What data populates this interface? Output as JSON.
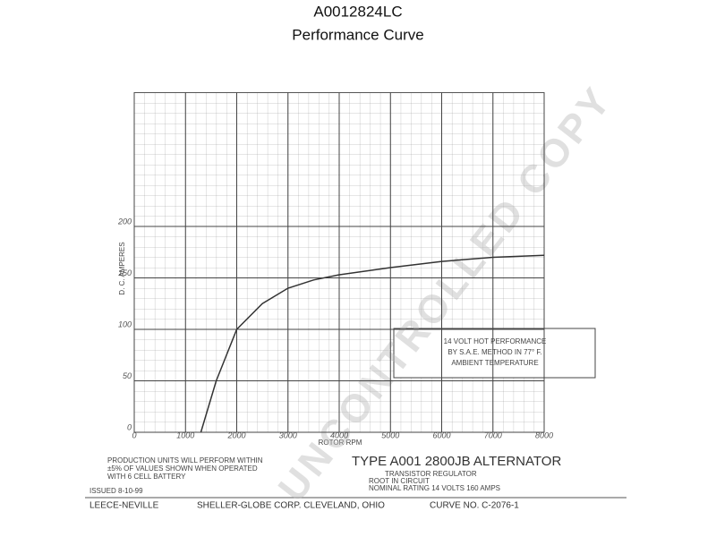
{
  "chart_data": {
    "type": "line",
    "title": "A0012824LC",
    "subtitle": "Performance Curve",
    "x_label": "ROTOR RPM",
    "y_label": "D. C. AMPERES",
    "x": [
      1300,
      1600,
      2000,
      2500,
      3000,
      3500,
      4000,
      5000,
      6000,
      7000,
      8000
    ],
    "values": [
      0,
      50,
      100,
      125,
      140,
      148,
      153,
      160,
      166,
      170,
      172
    ],
    "color": "#333333",
    "xlim": [
      0,
      8000
    ],
    "xticks": [
      0,
      1000,
      2000,
      3000,
      4000,
      5000,
      6000,
      7000,
      8000
    ],
    "ylim": [
      0,
      330
    ],
    "yticks": [
      0,
      50,
      100,
      150,
      200
    ],
    "grid": true,
    "box_lines": [
      "14 VOLT HOT PERFORMANCE",
      "BY S.A.E. METHOD IN 77° F.",
      "AMBIENT TEMPERATURE"
    ],
    "note_lines": [
      "PRODUCTION UNITS WILL PERFORM WITHIN",
      "±5% OF VALUES SHOWN WHEN OPERATED",
      "WITH 6 CELL BATTERY"
    ],
    "type_label": "TYPE A001 2800JB ALTERNATOR",
    "spec_lines": [
      "TRANSISTOR REGULATOR",
      "ROOT IN CIRCUIT",
      "NOMINAL RATING 14 VOLTS 160 AMPS"
    ],
    "issued": "ISSUED 8-10-99",
    "maker": "LEECE-NEVILLE",
    "company": "SHELLER-GLOBE CORP. CLEVELAND, OHIO",
    "curve_no": "CURVE NO. C-2076-1",
    "watermark": "UNCONTROLLED COPY"
  }
}
